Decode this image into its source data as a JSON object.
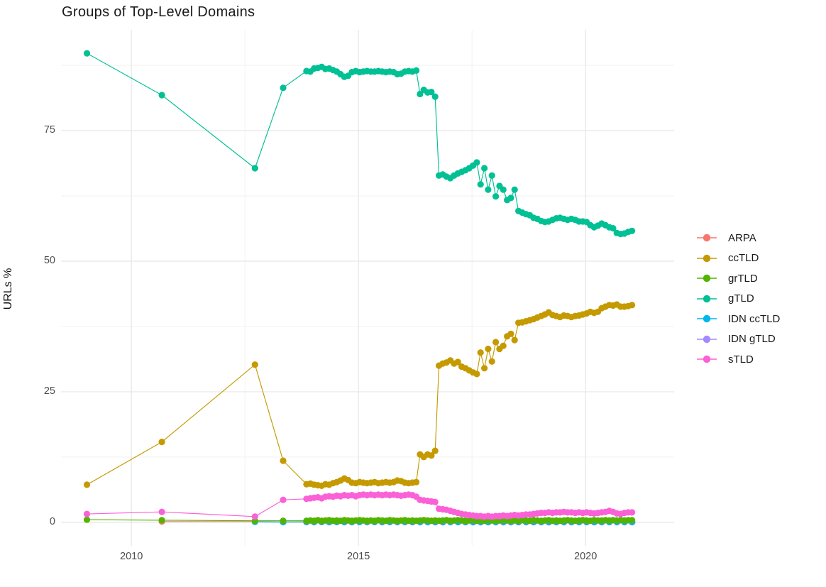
{
  "chart_data": {
    "type": "scatter",
    "title": "Groups of Top-Level Domains",
    "xlabel": "",
    "ylabel": "URLs %",
    "grid": {
      "major_color": "#e6e6e6",
      "minor_color": "#f2f2f2",
      "background": "#ffffff"
    },
    "text_colors": {
      "title": "#1a1a1a",
      "tick_labels": "#4d4d4d",
      "axis_title": "#111111"
    },
    "x_range": [
      2008.45,
      2021.95
    ],
    "y_range": [
      -4.5,
      94.3
    ],
    "x_ticks": {
      "values": [
        2010,
        2015,
        2020
      ],
      "labels": [
        "2010",
        "2015",
        "2020"
      ],
      "minor": [
        2012.5,
        2017.5
      ]
    },
    "y_ticks": {
      "values": [
        0,
        25,
        50,
        75
      ],
      "labels": [
        "0",
        "25",
        "50",
        "75"
      ],
      "minor": [
        12.5,
        37.5,
        62.5,
        87.5
      ]
    },
    "legend_position": "right",
    "series": [
      {
        "name": "ARPA",
        "color": "#F8766D",
        "z": 1,
        "early": [
          [
            2010.67,
            0.15
          ],
          [
            2012.72,
            0.15
          ],
          [
            2013.34,
            0.05
          ]
        ],
        "dense": {
          "start": 2013.855,
          "step": 0.16667,
          "values": [
            0.05,
            0.04,
            0.05,
            0.03,
            0.05,
            0.04,
            0.03,
            0.05,
            0.04,
            0.05,
            0.03,
            0.05,
            0.04,
            0.05,
            0.03,
            0.04,
            0.05,
            0.03,
            0.05,
            0.04,
            0.05,
            0.03,
            0.05,
            0.04,
            0.03,
            0.05,
            0.04,
            0.05,
            0.03,
            0.05,
            0.04,
            0.05,
            0.03,
            0.04,
            0.05,
            0.03,
            0.05,
            0.04,
            0.05,
            0.03,
            0.05,
            0.04,
            0.05,
            0.04
          ]
        }
      },
      {
        "name": "ccTLD",
        "color": "#C49A00",
        "z": 4,
        "early": [
          [
            2009.02,
            7.2
          ],
          [
            2010.67,
            15.4
          ],
          [
            2012.72,
            30.2
          ],
          [
            2013.34,
            11.8
          ]
        ],
        "dense": {
          "start": 2013.855,
          "step": 0.08333,
          "values": [
            7.3,
            7.4,
            7.2,
            7.1,
            7.0,
            7.3,
            7.2,
            7.5,
            7.7,
            8.0,
            8.4,
            8.1,
            7.6,
            7.5,
            7.7,
            7.6,
            7.5,
            7.6,
            7.7,
            7.5,
            7.6,
            7.7,
            7.6,
            7.7,
            8.0,
            7.9,
            7.6,
            7.5,
            7.6,
            7.7,
            13.0,
            12.5,
            13.0,
            12.8,
            13.7,
            30.0,
            30.4,
            30.6,
            31.0,
            30.4,
            30.7,
            29.8,
            29.5,
            29.1,
            28.7,
            28.4,
            32.5,
            29.5,
            33.2,
            30.8,
            34.5,
            33.2,
            33.8,
            35.6,
            36.1,
            34.9,
            38.2,
            38.3,
            38.5,
            38.7,
            38.9,
            39.2,
            39.5,
            39.8,
            40.2,
            39.7,
            39.5,
            39.3,
            39.6,
            39.5,
            39.3,
            39.5,
            39.6,
            39.8,
            40.0,
            40.3,
            40.1,
            40.3,
            41.0,
            41.3,
            41.6,
            41.5,
            41.7,
            41.3,
            41.3,
            41.4,
            41.6
          ]
        }
      },
      {
        "name": "grTLD",
        "color": "#53B400",
        "z": 6,
        "early": [
          [
            2009.02,
            0.5
          ],
          [
            2010.67,
            0.4
          ],
          [
            2012.72,
            0.3
          ],
          [
            2013.34,
            0.3
          ]
        ],
        "dense": {
          "start": 2013.855,
          "step": 0.08333,
          "values": [
            0.3,
            0.35,
            0.3,
            0.4,
            0.3,
            0.35,
            0.4,
            0.3,
            0.35,
            0.3,
            0.4,
            0.35,
            0.3,
            0.35,
            0.4,
            0.35,
            0.3,
            0.35,
            0.3,
            0.4,
            0.35,
            0.3,
            0.4,
            0.35,
            0.3,
            0.35,
            0.4,
            0.3,
            0.35,
            0.3,
            0.35,
            0.4,
            0.35,
            0.3,
            0.35,
            0.3,
            0.35,
            0.4,
            0.3,
            0.35,
            0.4,
            0.35,
            0.3,
            0.35,
            0.4,
            0.3,
            0.35,
            0.3,
            0.4,
            0.35,
            0.3,
            0.35,
            0.4,
            0.35,
            0.3,
            0.35,
            0.3,
            0.4,
            0.35,
            0.3,
            0.4,
            0.35,
            0.3,
            0.35,
            0.4,
            0.3,
            0.35,
            0.3,
            0.35,
            0.4,
            0.35,
            0.3,
            0.35,
            0.4,
            0.35,
            0.3,
            0.4,
            0.35,
            0.35,
            0.4,
            0.35,
            0.4,
            0.35,
            0.4,
            0.35,
            0.4,
            0.4
          ]
        }
      },
      {
        "name": "gTLD",
        "color": "#00C094",
        "z": 5,
        "early": [
          [
            2009.02,
            89.8
          ],
          [
            2010.67,
            81.8
          ],
          [
            2012.72,
            67.8
          ],
          [
            2013.34,
            83.2
          ]
        ],
        "dense": {
          "start": 2013.855,
          "step": 0.08333,
          "values": [
            86.4,
            86.3,
            86.9,
            87.0,
            87.2,
            86.8,
            86.9,
            86.6,
            86.3,
            85.8,
            85.3,
            85.5,
            86.2,
            86.4,
            86.2,
            86.3,
            86.4,
            86.3,
            86.3,
            86.4,
            86.3,
            86.2,
            86.3,
            86.2,
            85.8,
            85.9,
            86.3,
            86.4,
            86.3,
            86.5,
            82.0,
            82.8,
            82.3,
            82.4,
            81.5,
            66.4,
            66.6,
            66.2,
            65.9,
            66.4,
            66.8,
            67.1,
            67.4,
            67.8,
            68.3,
            68.9,
            64.7,
            67.8,
            63.7,
            66.4,
            62.4,
            64.4,
            63.7,
            61.7,
            62.1,
            63.7,
            59.6,
            59.3,
            59.0,
            58.8,
            58.3,
            58.1,
            57.7,
            57.5,
            57.6,
            57.9,
            58.2,
            58.3,
            58.1,
            57.9,
            58.1,
            57.9,
            57.6,
            57.6,
            57.5,
            56.9,
            56.5,
            56.8,
            57.2,
            56.9,
            56.5,
            56.3,
            55.4,
            55.2,
            55.3,
            55.6,
            55.8
          ]
        }
      },
      {
        "name": "IDN ccTLD",
        "color": "#00B6EB",
        "z": 3,
        "early": [
          [
            2012.72,
            0.1
          ],
          [
            2013.34,
            0.05
          ]
        ],
        "dense": {
          "start": 2013.855,
          "step": 0.16667,
          "values": [
            0.1,
            0.08,
            0.1,
            0.09,
            0.1,
            0.08,
            0.09,
            0.1,
            0.08,
            0.1,
            0.09,
            0.1,
            0.08,
            0.09,
            0.1,
            0.08,
            0.1,
            0.09,
            0.08,
            0.1,
            0.09,
            0.1,
            0.08,
            0.1,
            0.09,
            0.08,
            0.1,
            0.09,
            0.1,
            0.08,
            0.1,
            0.09,
            0.08,
            0.1,
            0.09,
            0.1,
            0.08,
            0.09,
            0.1,
            0.09,
            0.1,
            0.08,
            0.1,
            0.09
          ]
        }
      },
      {
        "name": "IDN gTLD",
        "color": "#A58AFF",
        "z": 2,
        "early": [],
        "dense": {
          "start": 2016.36,
          "step": 0.16667,
          "values": [
            0.05,
            0.04,
            0.05,
            0.03,
            0.05,
            0.04,
            0.05,
            0.03,
            0.04,
            0.05,
            0.04,
            0.05,
            0.03,
            0.05,
            0.04,
            0.05,
            0.04,
            0.03,
            0.05,
            0.04,
            0.05,
            0.04,
            0.05,
            0.03,
            0.05,
            0.04,
            0.05,
            0.04,
            0.05
          ]
        }
      },
      {
        "name": "sTLD",
        "color": "#FB61D7",
        "z": 7,
        "early": [
          [
            2009.02,
            1.6
          ],
          [
            2010.67,
            2.0
          ],
          [
            2012.72,
            1.1
          ],
          [
            2013.34,
            4.3
          ]
        ],
        "dense": {
          "start": 2013.855,
          "step": 0.08333,
          "values": [
            4.5,
            4.6,
            4.7,
            4.8,
            4.6,
            4.9,
            5.0,
            4.9,
            5.1,
            5.0,
            5.2,
            5.1,
            5.2,
            5.0,
            5.2,
            5.3,
            5.2,
            5.3,
            5.2,
            5.3,
            5.2,
            5.3,
            5.2,
            5.3,
            5.2,
            5.1,
            5.2,
            5.3,
            5.2,
            4.9,
            4.3,
            4.2,
            4.1,
            4.0,
            3.9,
            2.6,
            2.5,
            2.4,
            2.2,
            2.0,
            1.8,
            1.6,
            1.5,
            1.4,
            1.3,
            1.2,
            1.2,
            1.1,
            1.2,
            1.1,
            1.2,
            1.2,
            1.3,
            1.2,
            1.3,
            1.4,
            1.3,
            1.4,
            1.5,
            1.5,
            1.6,
            1.7,
            1.8,
            1.8,
            1.9,
            1.8,
            1.9,
            1.9,
            2.0,
            1.9,
            1.9,
            1.8,
            1.9,
            1.8,
            1.9,
            1.8,
            1.7,
            1.8,
            1.9,
            2.0,
            2.2,
            2.0,
            1.7,
            1.6,
            1.8,
            1.9,
            1.9
          ]
        }
      }
    ]
  }
}
